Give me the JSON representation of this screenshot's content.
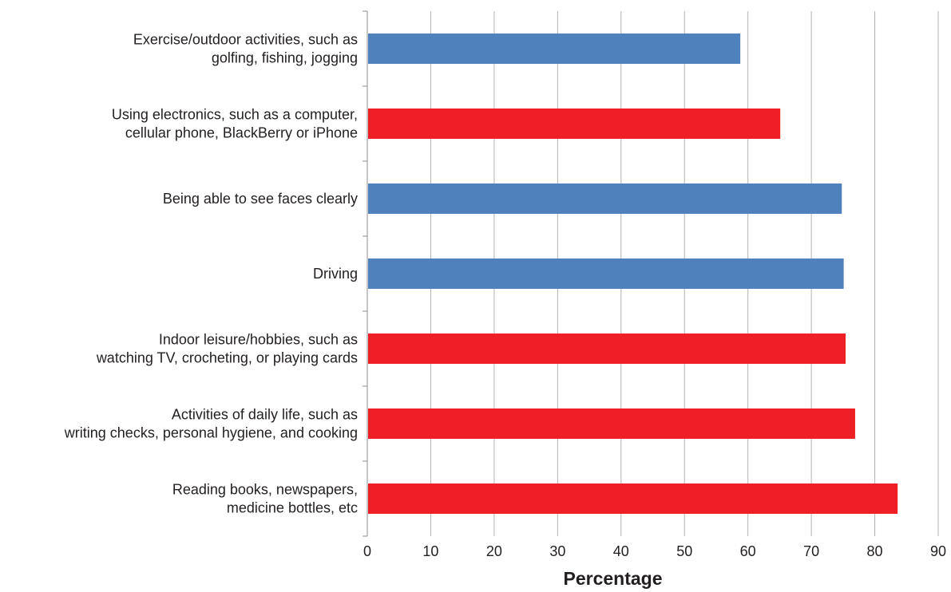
{
  "chart_data": {
    "type": "bar",
    "orientation": "horizontal",
    "categories": [
      [
        "Exercise/outdoor activities, such as",
        "golfing, fishing, jogging"
      ],
      [
        "Using electronics, such as a computer,",
        "cellular phone, BlackBerry or iPhone"
      ],
      [
        "Being able to see faces clearly"
      ],
      [
        "Driving"
      ],
      [
        "Indoor leisure/hobbies, such as",
        "watching TV, crocheting, or playing cards"
      ],
      [
        "Activities of daily life, such as",
        "writing checks, personal hygiene, and cooking"
      ],
      [
        "Reading books, newspapers,",
        "medicine bottles, etc"
      ]
    ],
    "values": [
      58.8,
      65.1,
      74.8,
      75.1,
      75.4,
      76.9,
      83.6
    ],
    "bar_colors": [
      "#4f81bd",
      "#ee1f25",
      "#4f81bd",
      "#4f81bd",
      "#ee1f25",
      "#ee1f25",
      "#ee1f25"
    ],
    "xlabel": "Percentage",
    "xlim": [
      0,
      90
    ],
    "xticks": [
      0,
      10,
      20,
      30,
      40,
      50,
      60,
      70,
      80,
      90
    ],
    "grid": "vertical",
    "legend": "none"
  }
}
